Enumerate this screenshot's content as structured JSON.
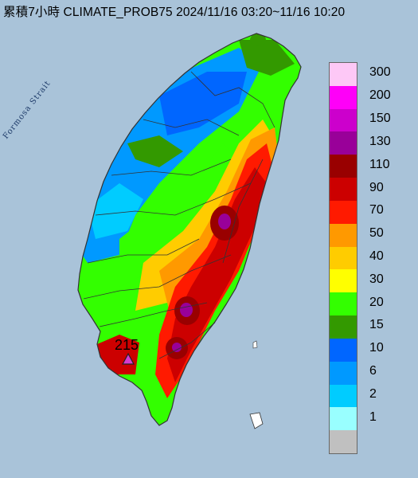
{
  "title": "累積7小時 CLIMATE_PROB75 2024/11/16 03:20~11/16 10:20",
  "map_label": "Formosa Strait",
  "station": {
    "value": "215",
    "marker_color": "#d63ad0"
  },
  "legend": [
    {
      "label": "300",
      "color": "#fdc8f6"
    },
    {
      "label": "200",
      "color": "#fe00f8"
    },
    {
      "label": "150",
      "color": "#cc00cc"
    },
    {
      "label": "130",
      "color": "#990099"
    },
    {
      "label": "110",
      "color": "#990000"
    },
    {
      "label": "90",
      "color": "#cc0000"
    },
    {
      "label": "70",
      "color": "#ff1a00"
    },
    {
      "label": "50",
      "color": "#ff9900"
    },
    {
      "label": "40",
      "color": "#ffcc00"
    },
    {
      "label": "30",
      "color": "#ffff00"
    },
    {
      "label": "20",
      "color": "#33ff00"
    },
    {
      "label": "15",
      "color": "#339900"
    },
    {
      "label": "10",
      "color": "#0066ff"
    },
    {
      "label": "6",
      "color": "#0099ff"
    },
    {
      "label": "2",
      "color": "#00ccff"
    },
    {
      "label": "1",
      "color": "#99ffff"
    },
    {
      "label": "",
      "color": "#c0c0c0"
    }
  ],
  "colors": {
    "sea": "#a9c3d9",
    "land_outline": "#333333"
  }
}
